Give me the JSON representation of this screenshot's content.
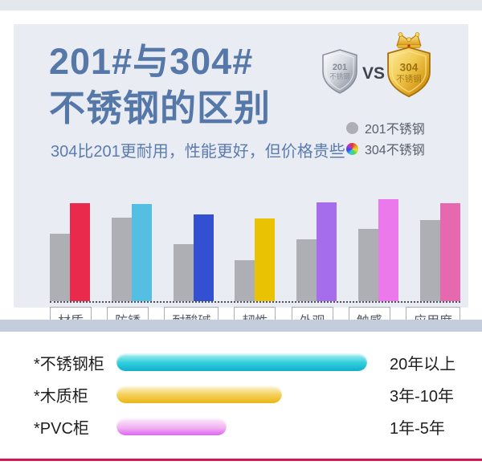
{
  "card": {
    "title_line1": "201#与304#",
    "title_line2": "不锈钢的区别",
    "subtitle": "304比201更耐用，性能更好，但价格贵些",
    "vs_label": "VS",
    "badge_silver": {
      "line1": "201",
      "line2": "不锈钢"
    },
    "badge_gold": {
      "line1": "304",
      "line2": "不锈钢"
    },
    "legend": [
      {
        "label": "201不锈钢",
        "swatch": "gray",
        "color": "#adafb5"
      },
      {
        "label": "304不锈钢",
        "swatch": "rainbow"
      }
    ]
  },
  "chart_data": {
    "type": "bar",
    "title": "201#与304#不锈钢的区别",
    "categories": [
      "材质",
      "防锈",
      "耐酸碱",
      "韧性",
      "外观",
      "触感",
      "应用度"
    ],
    "series": [
      {
        "name": "201不锈钢",
        "color": "#adafb5",
        "values": [
          65,
          80,
          55,
          39,
          59,
          69,
          78
        ]
      },
      {
        "name": "304不锈钢",
        "colors": [
          "#e92a4c",
          "#55bfe3",
          "#3350d2",
          "#e9c303",
          "#a56ceb",
          "#ec79ec",
          "#e668ae"
        ],
        "values": [
          94,
          93,
          83,
          79,
          95,
          98,
          94
        ]
      }
    ],
    "ylim": [
      0,
      100
    ],
    "grid": false,
    "legend_position": "top-right",
    "baseline_style": "dotted"
  },
  "lifespan_chart": {
    "type": "bar-horizontal",
    "rows": [
      {
        "label": "*不锈钢柜",
        "value_label": "20年以上",
        "length_pct": 100,
        "gradient": [
          "#aff0f0",
          "#2fcddd",
          "#12aecb"
        ]
      },
      {
        "label": "*木质柜",
        "value_label": "3年-10年",
        "length_pct": 66,
        "gradient": [
          "#fdf6dc",
          "#f3cf55",
          "#eab616"
        ]
      },
      {
        "label": "*PVC柜",
        "value_label": "1年-5年",
        "length_pct": 44,
        "gradient": [
          "#fceffc",
          "#f2b5f2",
          "#e066f2"
        ]
      }
    ]
  },
  "colors": {
    "card_bg": "#e9ecf3",
    "top_strip": "#e3e7ee",
    "divider_band": "#c4cddc",
    "bottom_accent_line": "#d4164e",
    "title_blue": "#5678a9"
  }
}
